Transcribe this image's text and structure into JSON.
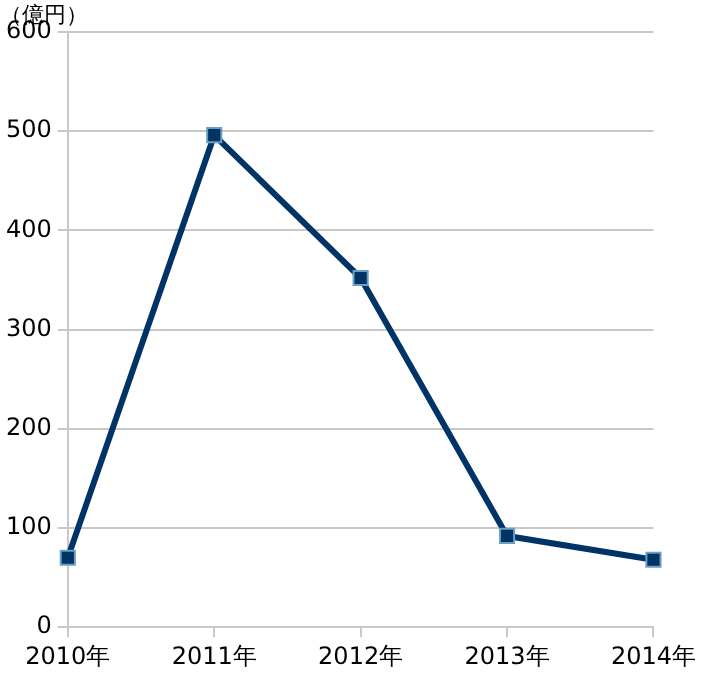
{
  "chart_data": {
    "type": "line",
    "ylabel": "（億円）",
    "categories": [
      "2010年",
      "2011年",
      "2012年",
      "2013年",
      "2014年"
    ],
    "series": [
      {
        "color": "#003366",
        "values": [
          70,
          496,
          352,
          92,
          68
        ]
      }
    ],
    "ylim": [
      0,
      600
    ],
    "yticks": [
      0,
      100,
      200,
      300,
      400,
      500,
      600
    ],
    "grid": "y",
    "legend": false,
    "marker": "square",
    "line_style": "solid"
  }
}
